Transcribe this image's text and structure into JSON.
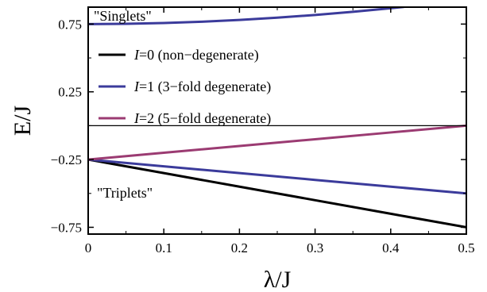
{
  "chart_data": {
    "type": "line",
    "xlabel": "λ/J",
    "ylabel": "E/J",
    "xlim": [
      0,
      0.5
    ],
    "ylim": [
      -0.8,
      0.875
    ],
    "x_ticks": [
      0,
      0.1,
      0.2,
      0.3,
      0.4,
      0.5
    ],
    "x_tick_labels": [
      "0",
      "0.1",
      "0.2",
      "0.3",
      "0.4",
      "0.5"
    ],
    "y_ticks": [
      0.75,
      0.25,
      -0.25,
      -0.75
    ],
    "y_tick_labels": [
      "0.75",
      "0.25",
      "−0.25",
      "−0.75"
    ],
    "reference_line_y": 0,
    "annotations": [
      {
        "id": "singlets",
        "text": "\"Singlets\""
      },
      {
        "id": "triplets",
        "text": "\"Triplets\""
      }
    ],
    "legend": {
      "placement": "upper-left",
      "entries": [
        {
          "italic": "I",
          "text": "=0 (non−degenerate)",
          "color": "#000000"
        },
        {
          "italic": "I",
          "text": "=1 (3−fold degenerate)",
          "color": "#3b3b9b"
        },
        {
          "italic": "I",
          "text": "=2 (5−fold degenerate)",
          "color": "#9b3b72"
        }
      ]
    },
    "series": [
      {
        "id": "triplet-I0",
        "color": "#000000",
        "width": 3,
        "x": [
          0,
          0.1,
          0.2,
          0.3,
          0.4,
          0.5
        ],
        "y": [
          -0.25,
          -0.35,
          -0.45,
          -0.55,
          -0.65,
          -0.75
        ]
      },
      {
        "id": "triplet-I1",
        "color": "#3b3b9b",
        "width": 3,
        "x": [
          0,
          0.1,
          0.2,
          0.3,
          0.4,
          0.5
        ],
        "y": [
          -0.25,
          -0.3,
          -0.35,
          -0.4,
          -0.45,
          -0.5
        ]
      },
      {
        "id": "triplet-I2",
        "color": "#9b3b72",
        "width": 3,
        "x": [
          0,
          0.1,
          0.2,
          0.3,
          0.4,
          0.5
        ],
        "y": [
          -0.25,
          -0.2,
          -0.15,
          -0.1,
          -0.05,
          0.0
        ]
      },
      {
        "id": "singlet",
        "color": "#3b3b9b",
        "width": 3,
        "x": [
          0,
          0.05,
          0.1,
          0.15,
          0.2,
          0.25,
          0.3,
          0.35,
          0.4,
          0.45,
          0.5
        ],
        "y": [
          0.75,
          0.7519,
          0.7577,
          0.7672,
          0.7804,
          0.7971,
          0.8172,
          0.8405,
          0.8669,
          0.8962,
          0.9282
        ]
      }
    ]
  }
}
